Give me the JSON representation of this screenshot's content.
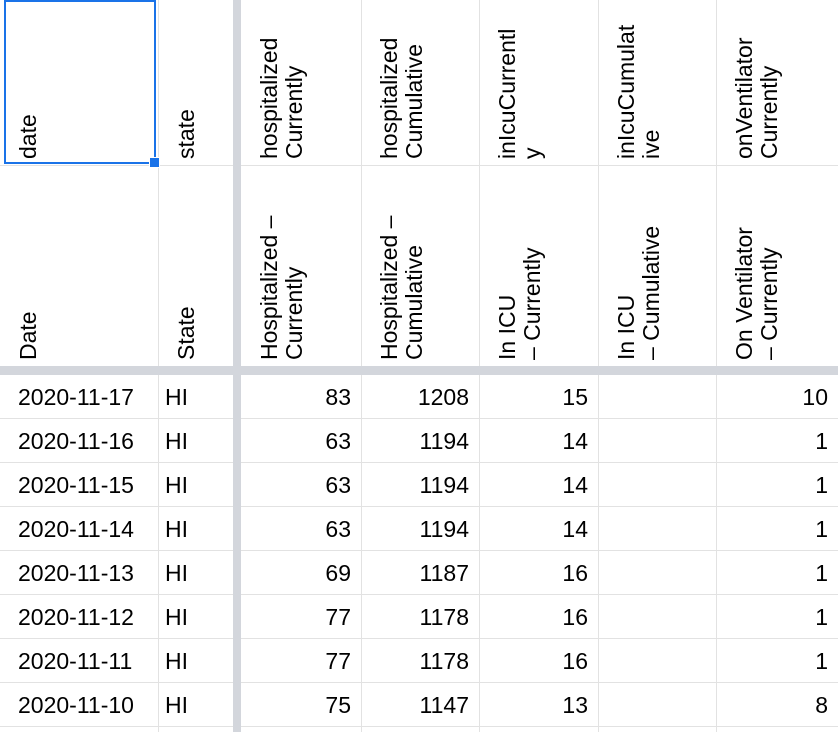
{
  "columns": [
    {
      "key": "date",
      "field": "date",
      "label": "Date"
    },
    {
      "key": "state",
      "field": "state",
      "label": "State"
    },
    {
      "key": "hosp_cur",
      "field": "hospitalized\nCurrently",
      "label": "Hospitalized –\nCurrently"
    },
    {
      "key": "hosp_cum",
      "field": "hospitalized\nCumulative",
      "label": "Hospitalized –\nCumulative"
    },
    {
      "key": "icu_cur",
      "field": "inIcuCurrentl\ny",
      "label": "In ICU\n– Currently"
    },
    {
      "key": "icu_cum",
      "field": "inIcuCumulat\nive",
      "label": "In ICU\n– Cumulative"
    },
    {
      "key": "vent_cur",
      "field": "onVentilator\nCurrently",
      "label": "On Ventilator\n– Currently"
    }
  ],
  "rows": [
    {
      "date": "2020-11-17",
      "state": "HI",
      "hosp_cur": "83",
      "hosp_cum": "1208",
      "icu_cur": "15",
      "icu_cum": "",
      "vent_cur": "10"
    },
    {
      "date": "2020-11-16",
      "state": "HI",
      "hosp_cur": "63",
      "hosp_cum": "1194",
      "icu_cur": "14",
      "icu_cum": "",
      "vent_cur": "1"
    },
    {
      "date": "2020-11-15",
      "state": "HI",
      "hosp_cur": "63",
      "hosp_cum": "1194",
      "icu_cur": "14",
      "icu_cum": "",
      "vent_cur": "1"
    },
    {
      "date": "2020-11-14",
      "state": "HI",
      "hosp_cur": "63",
      "hosp_cum": "1194",
      "icu_cur": "14",
      "icu_cum": "",
      "vent_cur": "1"
    },
    {
      "date": "2020-11-13",
      "state": "HI",
      "hosp_cur": "69",
      "hosp_cum": "1187",
      "icu_cur": "16",
      "icu_cum": "",
      "vent_cur": "1"
    },
    {
      "date": "2020-11-12",
      "state": "HI",
      "hosp_cur": "77",
      "hosp_cum": "1178",
      "icu_cur": "16",
      "icu_cum": "",
      "vent_cur": "1"
    },
    {
      "date": "2020-11-11",
      "state": "HI",
      "hosp_cur": "77",
      "hosp_cum": "1178",
      "icu_cur": "16",
      "icu_cum": "",
      "vent_cur": "1"
    },
    {
      "date": "2020-11-10",
      "state": "HI",
      "hosp_cur": "75",
      "hosp_cum": "1147",
      "icu_cur": "13",
      "icu_cum": "",
      "vent_cur": "8"
    }
  ],
  "selection_color": "#1a73e8",
  "freeze_color": "#d3d6dc"
}
